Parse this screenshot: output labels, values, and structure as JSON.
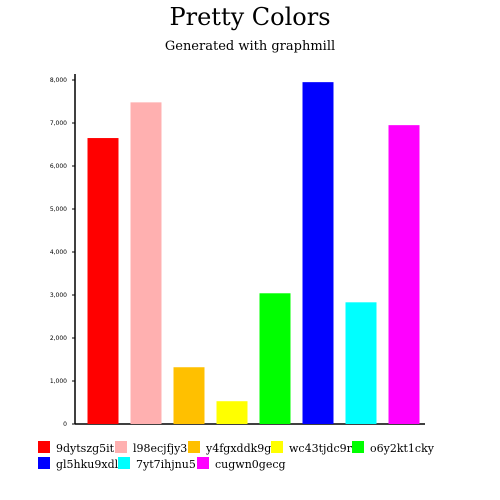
{
  "chart_data": {
    "type": "bar",
    "title": "Pretty Colors",
    "subtitle": "Generated with graphmill",
    "categories": [
      "9dytszg5it",
      "l98ecjfjy3",
      "y4fgxddk9g",
      "wc43tjdc9r",
      "o6y2kt1cky",
      "gl5hku9xdl",
      "7yt7ihjnu5",
      "cugwn0gecg"
    ],
    "values": [
      6650,
      7480,
      1320,
      530,
      3040,
      7950,
      2830,
      6950
    ],
    "colors": [
      "#ff0000",
      "#ffb0b0",
      "#ffc000",
      "#ffff00",
      "#00ff00",
      "#0000ff",
      "#00ffff",
      "#ff00ff"
    ],
    "ylim": [
      0,
      8000
    ],
    "yticks": [
      0,
      1000,
      2000,
      3000,
      4000,
      5000,
      6000,
      7000,
      8000
    ],
    "ytick_labels": [
      "0",
      "1,000",
      "2,000",
      "3,000",
      "4,000",
      "5,000",
      "6,000",
      "7,000",
      "8,000"
    ],
    "xlabel": "",
    "ylabel": "",
    "grid": false,
    "legend_position": "bottom"
  }
}
